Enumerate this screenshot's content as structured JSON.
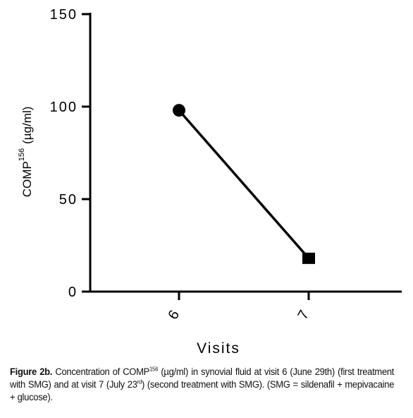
{
  "chart_data": {
    "type": "line",
    "y_label": "COMP",
    "y_label_superscript": "156",
    "y_label_unit": "(µg/ml)",
    "x_label": "Visits",
    "categories": [
      "6",
      "7"
    ],
    "series": [
      {
        "color": "#000000",
        "values": [
          98,
          18
        ],
        "markers": [
          "circle",
          "square"
        ]
      }
    ],
    "ylim": [
      0,
      150
    ],
    "yticks": [
      0,
      50,
      100,
      150
    ]
  },
  "caption": {
    "label": "Figure 2b.",
    "text_1": " Concentration of COMP",
    "sup_1": "156",
    "text_2": " (µg/ml) in synovial fluid at visit 6 (June 29th) (first treatment with SMG) and at visit 7 (July 23",
    "sup_2": "rd",
    "text_3": ") (second treatment with SMG). (SMG = sildenafil + mepivacaine + glucose)."
  }
}
